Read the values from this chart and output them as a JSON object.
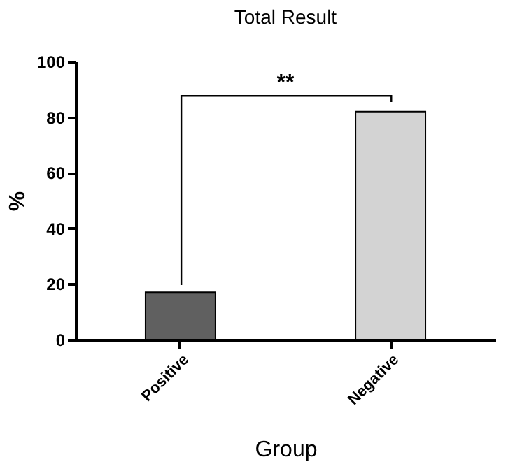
{
  "chart_data": {
    "type": "bar",
    "title": "Total Result",
    "xlabel": "Group",
    "ylabel": "%",
    "categories": [
      "Positive",
      "Negative"
    ],
    "values": [
      17,
      82
    ],
    "colors": [
      "#606060",
      "#d3d3d3"
    ],
    "ylim": [
      0,
      100
    ],
    "yticks": [
      0,
      20,
      40,
      60,
      80,
      100
    ],
    "grid": false,
    "annotations": [
      "**"
    ]
  }
}
